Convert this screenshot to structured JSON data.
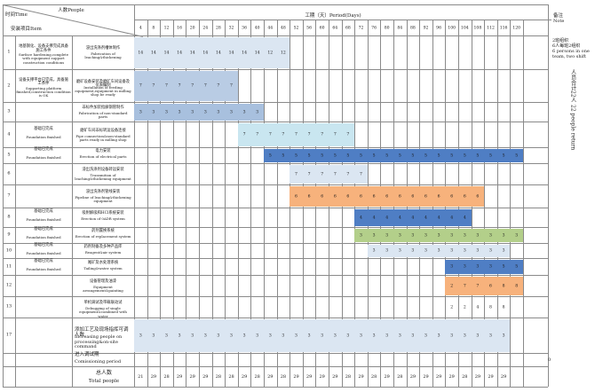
{
  "header": {
    "time_label": "时间Time",
    "people_label": "人数People",
    "item_label": "安装项目Item",
    "period_label": "工期（天）Period(Days)",
    "remark_label": "备注",
    "remark_label_en": "Note"
  },
  "days": [
    "4",
    "8",
    "12",
    "16",
    "20",
    "24",
    "28",
    "32",
    "36",
    "40",
    "44",
    "48",
    "52",
    "56",
    "60",
    "64",
    "68",
    "72",
    "76",
    "80",
    "84",
    "88",
    "92",
    "96",
    "100",
    "104",
    "108",
    "112",
    "116",
    "120"
  ],
  "notes": {
    "top": [
      "2班组织",
      "6人每班2组织",
      "6 persons in one",
      "team, two shift"
    ],
    "vertical_cn": "人员合计22人",
    "vertical_en": "22 people return"
  },
  "rows": [
    {
      "no": "1",
      "item_cn": "地基钢化、设备支撑完成具备施工条件",
      "item_en": "Surface hardening,complete with equipment support construction conditions",
      "task_cn": "浸出洗涤剂槽体制作",
      "task_en": "Fabrication of leaching&thickening",
      "color": "#dbe6f2",
      "start": 0,
      "vals": [
        "14",
        "14",
        "14",
        "14",
        "14",
        "14",
        "14",
        "14",
        "14",
        "14",
        "12",
        "12"
      ]
    },
    {
      "no": "2",
      "item_cn": "设备支撑平台已完成，具备施工条件",
      "item_en": "Supporting platform finished,construction condition is OK",
      "task_cn": "磨矿设备安装及磨矿车间设备及仪表编制",
      "task_en": "Installation of feeding equipment,equipment in milling shop be ready",
      "color": "#b9cce4",
      "start": 0,
      "vals": [
        "7",
        "7",
        "7",
        "7",
        "7",
        "7",
        "7",
        "7"
      ]
    },
    {
      "no": "3",
      "item_cn": "",
      "item_en": "",
      "task_cn": "非标件加装指廊钢管制作",
      "task_en": "Fabrication of non-standard parts",
      "color": "#a8c0de",
      "start": 0,
      "vals": [
        "3",
        "3",
        "3",
        "3",
        "3",
        "3",
        "3",
        "3",
        "3",
        "3"
      ]
    },
    {
      "no": "4",
      "item_cn": "基础已完成",
      "item_en": "Foundation finished",
      "task_cn": "磨矿车间非标转运设备连接",
      "task_en": "Pipe connection&non-standard parts ready in milling shop",
      "color": "#c9e6f0",
      "start": 8,
      "vals": [
        "7",
        "7",
        "7",
        "7",
        "7",
        "7",
        "7",
        "7",
        "7"
      ]
    },
    {
      "no": "5",
      "item_cn": "基础已完成",
      "item_en": "Foundation finished",
      "task_cn": "电力安装",
      "task_en": "Erection of electrical parts",
      "color": "#4f7ec4",
      "start": 10,
      "vals": [
        "5",
        "5",
        "5",
        "5",
        "5",
        "5",
        "5",
        "5",
        "5",
        "5",
        "5",
        "5",
        "5",
        "5",
        "5",
        "5",
        "5",
        "5",
        "5",
        "5"
      ]
    },
    {
      "no": "6",
      "item_cn": "",
      "item_en": "",
      "task_cn": "浸出洗涤剂设备转运安装",
      "task_en": "Transmition of leaching&thickening equipment",
      "color": "#dbe6f2",
      "start": 12,
      "vals": [
        "7",
        "7",
        "7",
        "7",
        "7",
        "7"
      ]
    },
    {
      "no": "7",
      "item_cn": "",
      "item_en": "",
      "task_cn": "浸出洗涤剂管线安装",
      "task_en": "Pipeline of leaching&thickening equipment",
      "color": "#f7b27c",
      "start": 12,
      "vals": [
        "6",
        "6",
        "6",
        "6",
        "6",
        "6",
        "6",
        "6",
        "6",
        "6",
        "6",
        "6",
        "6",
        "6",
        "6"
      ]
    },
    {
      "no": "8",
      "item_cn": "基础已完成",
      "item_en": "Foundation finished",
      "task_cn": "吸附解吸和HCl系统安装",
      "task_en": "Erection of 0ADR system",
      "color": "#4f7ec4",
      "start": 17,
      "vals": [
        "4",
        "4",
        "4",
        "4",
        "4",
        "4",
        "4",
        "4",
        "4"
      ]
    },
    {
      "no": "9",
      "item_cn": "基础已完成",
      "item_en": "Foundation finished",
      "task_cn": "药剂置换系统",
      "task_en": "Erection of replacement system",
      "color": "#b3cf8a",
      "start": 17,
      "vals": [
        "3",
        "3",
        "3",
        "3",
        "3",
        "3",
        "3",
        "3",
        "3",
        "3",
        "3",
        "3",
        "3"
      ]
    },
    {
      "no": "10",
      "item_cn": "基础已完成",
      "item_en": "Foundation finished",
      "task_cn": "药剂制备及多种产品库",
      "task_en": "Reagent&air system",
      "color": "#dbe6f2",
      "start": 18,
      "vals": [
        "3",
        "3",
        "3",
        "3",
        "3",
        "3",
        "3",
        "3",
        "3",
        "3",
        "3"
      ]
    },
    {
      "no": "11",
      "item_cn": "基础已完成",
      "item_en": "Foundation finished",
      "task_cn": "尾矿及水处理系统",
      "task_en": "Tailing&water system",
      "color": "#4f7ec4",
      "start": 24,
      "vals": [
        "3",
        "3",
        "3",
        "3",
        "5",
        "5"
      ]
    },
    {
      "no": "12",
      "item_cn": "",
      "item_en": "",
      "task_cn": "设备管理及油漆",
      "task_en": "Equipment arrangement&painting",
      "color": "#f7b27c",
      "start": 24,
      "vals": [
        "2",
        "7",
        "7",
        "6",
        "8",
        "8"
      ]
    },
    {
      "no": "13",
      "item_cn": "",
      "item_en": "",
      "task_cn": "单机调试及带载联动试",
      "task_en": "Debugging of single equipment&combined with water",
      "color": "",
      "start": 24,
      "vals": [
        "2",
        "2",
        "4",
        "8",
        "8"
      ]
    },
    {
      "no": "17",
      "item_cn": "",
      "item_en": "",
      "task_cn": "添加工艺及现场指挥可调人数",
      "task_en": "Increasing people on processing&on-site command",
      "color": "#dbe6f2",
      "start": 0,
      "vals": [
        "3",
        "3",
        "3",
        "3",
        "3",
        "3",
        "3",
        "3",
        "3",
        "3",
        "3",
        "3",
        "3",
        "3",
        "3",
        "3",
        "3",
        "3",
        "3",
        "3",
        "3",
        "3",
        "3",
        "3",
        "3",
        "3",
        "3",
        "3",
        "3"
      ]
    },
    {
      "no": "",
      "item_cn": "",
      "item_en": "",
      "task_cn": "进入调试期",
      "task_en": "Comissioning period",
      "color": "",
      "start": 0,
      "vals": []
    }
  ],
  "commission_tail": "0",
  "total": {
    "label_cn": "总人数",
    "label_en": "Total people",
    "vals": [
      "21",
      "29",
      "28",
      "29",
      "29",
      "29",
      "28",
      "28",
      "29",
      "28",
      "29",
      "28",
      "29",
      "29",
      "29",
      "29",
      "28",
      "29",
      "28",
      "29",
      "28",
      "29",
      "29",
      "29",
      "29",
      "28",
      "29",
      "29",
      "29"
    ]
  }
}
